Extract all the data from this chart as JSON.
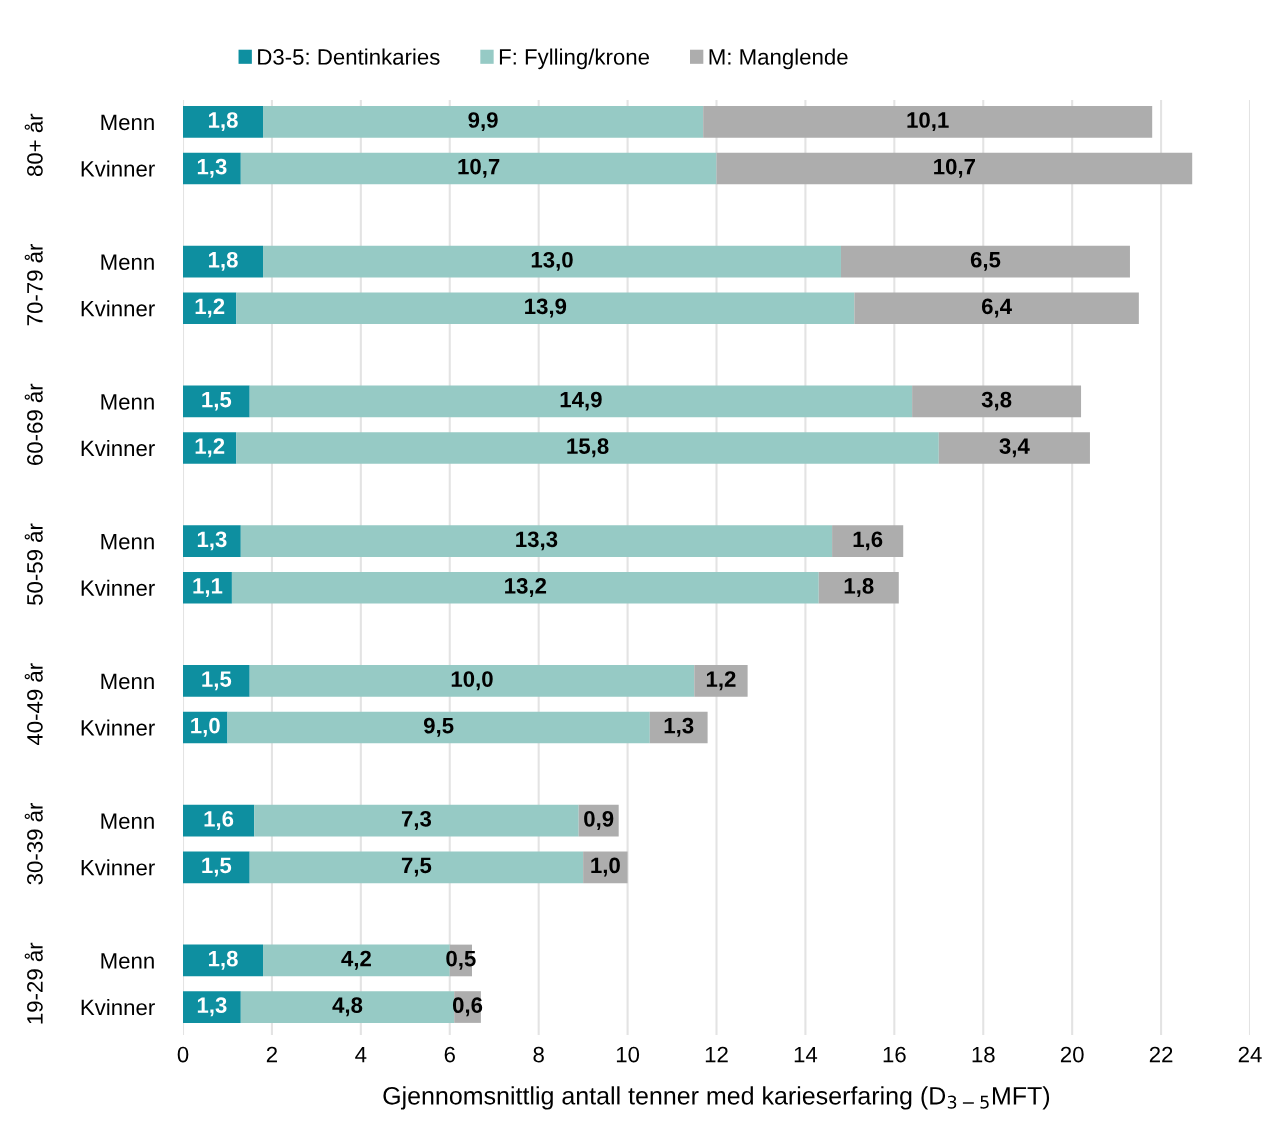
{
  "chart_data": {
    "type": "bar",
    "orientation": "horizontal",
    "stacked": true,
    "categories": [
      "Menn",
      "Kvinner",
      "Menn",
      "Kvinner",
      "Menn",
      "Kvinner",
      "Menn",
      "Kvinner",
      "Menn",
      "Kvinner",
      "Menn",
      "Kvinner",
      "Menn",
      "Kvinner"
    ],
    "series": [
      {
        "name": "D3-5: Dentinkaries",
        "color": "#0e8fa0",
        "values": [
          1.8,
          1.3,
          1.8,
          1.2,
          1.5,
          1.2,
          1.3,
          1.1,
          1.5,
          1.0,
          1.6,
          1.5,
          1.8,
          1.3
        ],
        "value_labels": [
          "1,8",
          "1,3",
          "1,8",
          "1,2",
          "1,5",
          "1,2",
          "1,3",
          "1,1",
          "1,5",
          "1,0",
          "1,6",
          "1,5",
          "1,8",
          "1,3"
        ]
      },
      {
        "name": "F: Fylling/krone",
        "color": "#96cac5",
        "values": [
          9.9,
          10.7,
          13.0,
          13.9,
          14.9,
          15.8,
          13.3,
          13.2,
          10.0,
          9.5,
          7.3,
          7.5,
          4.2,
          4.8
        ],
        "value_labels": [
          "9,9",
          "10,7",
          "13,0",
          "13,9",
          "14,9",
          "15,8",
          "13,3",
          "13,2",
          "10,0",
          "9,5",
          "7,3",
          "7,5",
          "4,2",
          "4,8"
        ]
      },
      {
        "name": "M: Manglende",
        "color": "#adadad",
        "values": [
          10.1,
          10.7,
          6.5,
          6.4,
          3.8,
          3.4,
          1.6,
          1.8,
          1.2,
          1.3,
          0.9,
          1.0,
          0.5,
          0.6
        ],
        "value_labels": [
          "10,1",
          "10,7",
          "6,5",
          "6,4",
          "3,8",
          "3,4",
          "1,6",
          "1,8",
          "1,2",
          "1,3",
          "0,9",
          "1,0",
          "0,5",
          "0,6"
        ]
      }
    ],
    "xlim": [
      0,
      24
    ],
    "xticks": [
      0,
      2,
      4,
      6,
      8,
      10,
      12,
      14,
      16,
      18,
      20,
      22,
      24
    ],
    "xlabel": "Gjennomsnittlig antall tenner med karieserfaring (D$_{3−5}$MFT)",
    "annotations": [
      "80+ år",
      "70-79 år",
      "60-69 år",
      "50-59 år",
      "40-49 år",
      "30-39 år",
      "19-29 år"
    ],
    "grid": "x",
    "legend": "top"
  }
}
